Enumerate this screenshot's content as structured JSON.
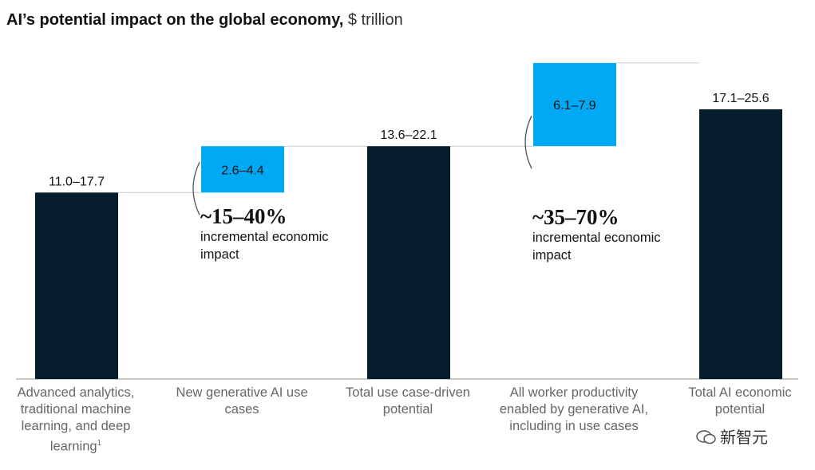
{
  "title": {
    "bold": "AI’s potential impact on the global economy,",
    "unit": "$ trillion"
  },
  "chart_data": {
    "type": "bar",
    "subtype": "waterfall",
    "unit": "$ trillion",
    "categories": [
      "Advanced analytics, traditional machine learning, and deep learning",
      "New generative AI use cases",
      "Total use case-driven potential",
      "All worker productivity enabled by generative AI, including in use cases",
      "Total AI economic potential"
    ],
    "footnote_marker": "1",
    "bars": [
      {
        "kind": "total",
        "low": 11.0,
        "high": 17.7,
        "label": "11.0–17.7",
        "color": "#051c2c"
      },
      {
        "kind": "increment",
        "low": 2.6,
        "high": 4.4,
        "label": "2.6–4.4",
        "color": "#00a9f4"
      },
      {
        "kind": "total",
        "low": 13.6,
        "high": 22.1,
        "label": "13.6–22.1",
        "color": "#051c2c"
      },
      {
        "kind": "increment",
        "low": 6.1,
        "high": 7.9,
        "label": "6.1–7.9",
        "color": "#00a9f4"
      },
      {
        "kind": "total",
        "low": 17.1,
        "high": 25.6,
        "label": "17.1–25.6",
        "color": "#051c2c"
      }
    ],
    "annotations": [
      {
        "value": "~15–40%",
        "text": "incremental economic impact"
      },
      {
        "value": "~35–70%",
        "text": "incremental economic impact"
      }
    ]
  },
  "watermark": {
    "text": "新智元"
  }
}
